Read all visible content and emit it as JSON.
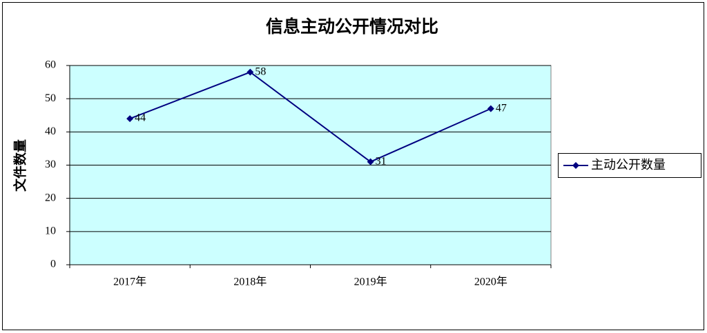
{
  "chart_data": {
    "type": "line",
    "title": "信息主动公开情况对比",
    "y_label": "文件数量",
    "categories": [
      "2017年",
      "2018年",
      "2019年",
      "2020年"
    ],
    "series": [
      {
        "name": "主动公开数量",
        "color": "#000080",
        "values": [
          44,
          58,
          31,
          47
        ]
      }
    ],
    "ylim": [
      0,
      60
    ],
    "yticks": [
      0,
      10,
      20,
      30,
      40,
      50,
      60
    ],
    "grid": true,
    "legend": "right",
    "plot_background": "#ccffff"
  }
}
